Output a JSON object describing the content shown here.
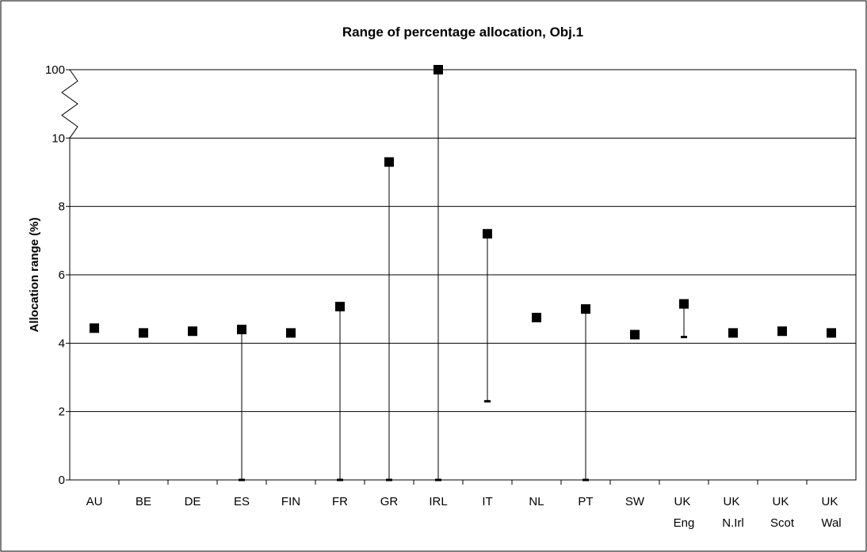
{
  "chart_data": {
    "type": "range",
    "title": "Range of percentage allocation, Obj.1",
    "y_label": "Allocation range (%)",
    "categories": [
      "AU",
      "BE",
      "DE",
      "ES",
      "FIN",
      "FR",
      "GR",
      "IRL",
      "IT",
      "NL",
      "PT",
      "SW",
      "UK Eng",
      "UK N.Irl",
      "UK Scot",
      "UK Wal"
    ],
    "high": [
      4.44,
      4.3,
      4.35,
      4.4,
      4.3,
      5.07,
      9.3,
      100,
      7.2,
      4.75,
      5.0,
      4.25,
      5.15,
      4.3,
      4.35,
      4.3
    ],
    "low": [
      null,
      null,
      null,
      0,
      null,
      0,
      0,
      0,
      2.3,
      null,
      0,
      null,
      4.18,
      null,
      null,
      null
    ],
    "color": "#000000",
    "ylim": [
      0,
      100
    ],
    "yticks": [
      0,
      2,
      4,
      6,
      8,
      10,
      100
    ],
    "axis_break": true,
    "grid": true
  }
}
